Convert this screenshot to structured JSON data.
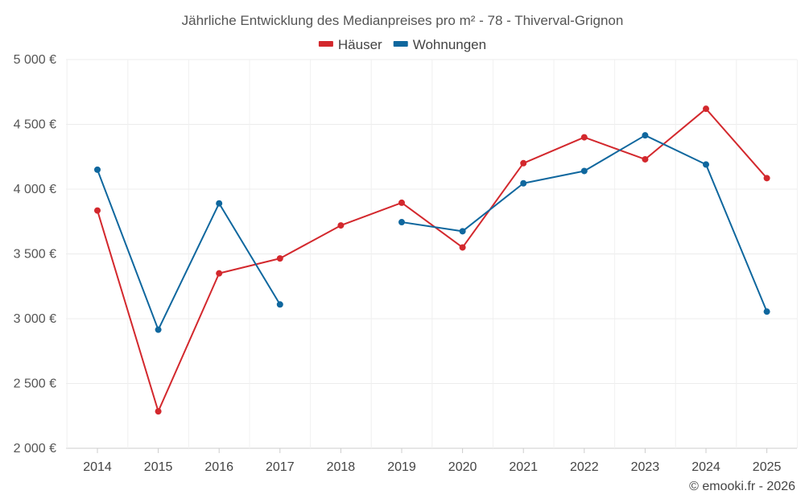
{
  "chart_data": {
    "type": "line",
    "title": "Jährliche Entwicklung des Medianpreises pro m² - 78 - Thiverval-Grignon",
    "x": [
      "2014",
      "2015",
      "2016",
      "2017",
      "2018",
      "2019",
      "2020",
      "2021",
      "2022",
      "2023",
      "2024",
      "2025"
    ],
    "ylim": [
      2000,
      5000
    ],
    "y_ticks": [
      2000,
      2500,
      3000,
      3500,
      4000,
      4500,
      5000
    ],
    "y_tick_labels": [
      "2 000 €",
      "2 500 €",
      "3 000 €",
      "3 500 €",
      "4 000 €",
      "4 500 €",
      "5 000 €"
    ],
    "legend_position": "top-center",
    "grid": true,
    "series": [
      {
        "name": "Häuser",
        "color": "#d3282d",
        "values": [
          3835,
          2285,
          3350,
          3465,
          3720,
          3895,
          3550,
          4200,
          4400,
          4230,
          4620,
          4085
        ]
      },
      {
        "name": "Wohnungen",
        "color": "#0f679e",
        "values": [
          4150,
          2915,
          3890,
          3110,
          null,
          3745,
          3675,
          4045,
          4140,
          4415,
          4190,
          3055
        ]
      }
    ]
  },
  "credit": "© emooki.fr - 2026"
}
